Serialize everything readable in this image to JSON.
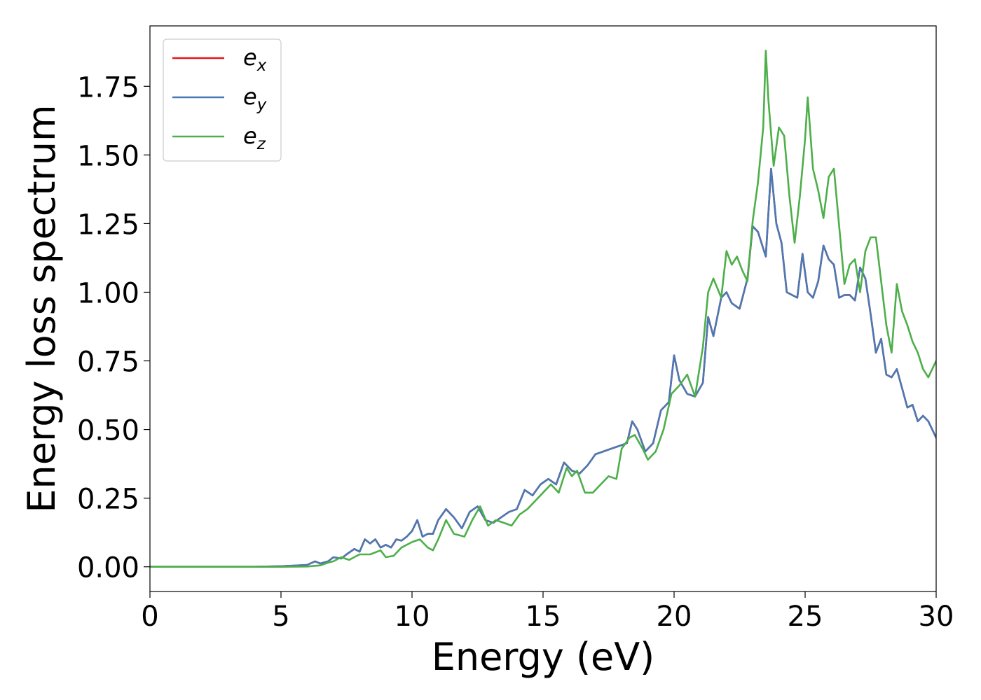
{
  "chart_data": {
    "type": "line",
    "xlabel": "Energy (eV)",
    "ylabel": "Energy loss spectrum",
    "xlim": [
      0,
      30
    ],
    "ylim": [
      -0.09,
      1.97
    ],
    "xticks": [
      0,
      5,
      10,
      15,
      20,
      25,
      30
    ],
    "xtick_labels": [
      "0",
      "5",
      "10",
      "15",
      "20",
      "25",
      "30"
    ],
    "yticks": [
      0.0,
      0.25,
      0.5,
      0.75,
      1.0,
      1.25,
      1.5,
      1.75
    ],
    "ytick_labels": [
      "0.00",
      "0.25",
      "0.50",
      "0.75",
      "1.00",
      "1.25",
      "1.50",
      "1.75"
    ],
    "grid": false,
    "legend_position": "top-left",
    "series": [
      {
        "name": "e_x",
        "legend_base": "e",
        "legend_sub": "x",
        "color": "#e41a1c",
        "x": [
          0,
          2,
          4,
          5,
          5.5,
          6,
          6.3,
          6.5,
          6.8,
          7,
          7.3,
          7.5,
          7.8,
          8,
          8.2,
          8.4,
          8.6,
          8.8,
          9,
          9.2,
          9.4,
          9.6,
          9.8,
          10,
          10.2,
          10.4,
          10.6,
          10.8,
          11,
          11.3,
          11.6,
          11.9,
          12.2,
          12.5,
          12.8,
          13.1,
          13.4,
          13.7,
          14,
          14.3,
          14.6,
          14.9,
          15.2,
          15.5,
          15.8,
          16.1,
          16.4,
          16.7,
          17,
          17.3,
          17.6,
          17.9,
          18.2,
          18.4,
          18.6,
          18.9,
          19.2,
          19.5,
          19.8,
          20,
          20.2,
          20.5,
          20.8,
          21.1,
          21.3,
          21.5,
          21.8,
          22,
          22.2,
          22.5,
          22.8,
          23,
          23.2,
          23.5,
          23.7,
          23.9,
          24.1,
          24.3,
          24.5,
          24.7,
          24.9,
          25.1,
          25.3,
          25.5,
          25.7,
          25.9,
          26.1,
          26.3,
          26.5,
          26.7,
          26.9,
          27.1,
          27.3,
          27.5,
          27.7,
          27.9,
          28.1,
          28.3,
          28.5,
          28.7,
          28.9,
          29.1,
          29.3,
          29.5,
          29.7,
          30
        ],
        "y": [
          0.0,
          0.0,
          0.0,
          0.002,
          0.004,
          0.007,
          0.02,
          0.012,
          0.02,
          0.035,
          0.03,
          0.045,
          0.065,
          0.055,
          0.1,
          0.085,
          0.1,
          0.07,
          0.08,
          0.07,
          0.1,
          0.095,
          0.11,
          0.13,
          0.17,
          0.11,
          0.12,
          0.12,
          0.17,
          0.21,
          0.18,
          0.14,
          0.2,
          0.22,
          0.17,
          0.16,
          0.18,
          0.2,
          0.21,
          0.28,
          0.26,
          0.3,
          0.32,
          0.3,
          0.38,
          0.35,
          0.34,
          0.37,
          0.41,
          0.42,
          0.43,
          0.44,
          0.45,
          0.53,
          0.5,
          0.42,
          0.45,
          0.57,
          0.6,
          0.77,
          0.68,
          0.63,
          0.62,
          0.67,
          0.91,
          0.84,
          0.98,
          1.0,
          0.96,
          0.94,
          1.05,
          1.24,
          1.22,
          1.13,
          1.45,
          1.25,
          1.18,
          1.0,
          0.99,
          0.98,
          1.14,
          1.0,
          0.98,
          1.04,
          1.17,
          1.12,
          1.1,
          0.98,
          0.99,
          0.99,
          0.97,
          1.09,
          1.05,
          0.92,
          0.78,
          0.83,
          0.7,
          0.69,
          0.72,
          0.65,
          0.58,
          0.59,
          0.53,
          0.55,
          0.53,
          0.47
        ]
      },
      {
        "name": "e_y",
        "legend_base": "e",
        "legend_sub": "y",
        "color": "#4a79b3",
        "x": [
          0,
          2,
          4,
          5,
          5.5,
          6,
          6.3,
          6.5,
          6.8,
          7,
          7.3,
          7.5,
          7.8,
          8,
          8.2,
          8.4,
          8.6,
          8.8,
          9,
          9.2,
          9.4,
          9.6,
          9.8,
          10,
          10.2,
          10.4,
          10.6,
          10.8,
          11,
          11.3,
          11.6,
          11.9,
          12.2,
          12.5,
          12.8,
          13.1,
          13.4,
          13.7,
          14,
          14.3,
          14.6,
          14.9,
          15.2,
          15.5,
          15.8,
          16.1,
          16.4,
          16.7,
          17,
          17.3,
          17.6,
          17.9,
          18.2,
          18.4,
          18.6,
          18.9,
          19.2,
          19.5,
          19.8,
          20,
          20.2,
          20.5,
          20.8,
          21.1,
          21.3,
          21.5,
          21.8,
          22,
          22.2,
          22.5,
          22.8,
          23,
          23.2,
          23.5,
          23.7,
          23.9,
          24.1,
          24.3,
          24.5,
          24.7,
          24.9,
          25.1,
          25.3,
          25.5,
          25.7,
          25.9,
          26.1,
          26.3,
          26.5,
          26.7,
          26.9,
          27.1,
          27.3,
          27.5,
          27.7,
          27.9,
          28.1,
          28.3,
          28.5,
          28.7,
          28.9,
          29.1,
          29.3,
          29.5,
          29.7,
          30
        ],
        "y": [
          0.0,
          0.0,
          0.0,
          0.002,
          0.004,
          0.007,
          0.02,
          0.012,
          0.02,
          0.035,
          0.03,
          0.045,
          0.065,
          0.055,
          0.1,
          0.085,
          0.1,
          0.07,
          0.08,
          0.07,
          0.1,
          0.095,
          0.11,
          0.13,
          0.17,
          0.11,
          0.12,
          0.12,
          0.17,
          0.21,
          0.18,
          0.14,
          0.2,
          0.22,
          0.17,
          0.16,
          0.18,
          0.2,
          0.21,
          0.28,
          0.26,
          0.3,
          0.32,
          0.3,
          0.38,
          0.35,
          0.34,
          0.37,
          0.41,
          0.42,
          0.43,
          0.44,
          0.45,
          0.53,
          0.5,
          0.42,
          0.45,
          0.57,
          0.6,
          0.77,
          0.68,
          0.63,
          0.62,
          0.67,
          0.91,
          0.84,
          0.98,
          1.0,
          0.96,
          0.94,
          1.05,
          1.24,
          1.22,
          1.13,
          1.45,
          1.25,
          1.18,
          1.0,
          0.99,
          0.98,
          1.14,
          1.0,
          0.98,
          1.04,
          1.17,
          1.12,
          1.1,
          0.98,
          0.99,
          0.99,
          0.97,
          1.09,
          1.05,
          0.92,
          0.78,
          0.83,
          0.7,
          0.69,
          0.72,
          0.65,
          0.58,
          0.59,
          0.53,
          0.55,
          0.53,
          0.47
        ]
      },
      {
        "name": "e_z",
        "legend_base": "e",
        "legend_sub": "z",
        "color": "#4daf4a",
        "x": [
          0,
          2,
          4,
          5,
          6,
          6.5,
          6.8,
          7,
          7.3,
          7.6,
          8,
          8.4,
          8.8,
          9,
          9.3,
          9.6,
          10,
          10.3,
          10.6,
          10.8,
          11,
          11.3,
          11.6,
          12,
          12.3,
          12.6,
          12.9,
          13.2,
          13.5,
          13.8,
          14.1,
          14.4,
          14.7,
          15,
          15.3,
          15.6,
          15.9,
          16.1,
          16.3,
          16.6,
          16.9,
          17.2,
          17.5,
          17.8,
          18,
          18.3,
          18.5,
          18.8,
          19,
          19.3,
          19.6,
          19.9,
          20.2,
          20.5,
          20.8,
          21.1,
          21.3,
          21.5,
          21.8,
          22,
          22.2,
          22.4,
          22.6,
          22.8,
          23,
          23.2,
          23.4,
          23.5,
          23.6,
          23.8,
          24,
          24.2,
          24.4,
          24.6,
          24.8,
          25,
          25.1,
          25.3,
          25.5,
          25.7,
          25.9,
          26.1,
          26.3,
          26.5,
          26.7,
          26.9,
          27.1,
          27.3,
          27.5,
          27.7,
          27.9,
          28.1,
          28.3,
          28.5,
          28.7,
          28.9,
          29.1,
          29.3,
          29.5,
          29.7,
          30
        ],
        "y": [
          0.0,
          0.0,
          0.0,
          0.0,
          0.001,
          0.005,
          0.015,
          0.02,
          0.035,
          0.025,
          0.045,
          0.045,
          0.06,
          0.035,
          0.04,
          0.07,
          0.09,
          0.1,
          0.07,
          0.06,
          0.1,
          0.17,
          0.12,
          0.11,
          0.17,
          0.22,
          0.15,
          0.17,
          0.16,
          0.15,
          0.19,
          0.21,
          0.24,
          0.27,
          0.3,
          0.27,
          0.36,
          0.33,
          0.35,
          0.27,
          0.27,
          0.3,
          0.33,
          0.32,
          0.43,
          0.47,
          0.48,
          0.43,
          0.39,
          0.42,
          0.5,
          0.63,
          0.66,
          0.7,
          0.62,
          0.8,
          1.0,
          1.05,
          0.98,
          1.15,
          1.1,
          1.13,
          1.08,
          1.04,
          1.26,
          1.4,
          1.6,
          1.88,
          1.7,
          1.46,
          1.6,
          1.57,
          1.35,
          1.18,
          1.35,
          1.56,
          1.71,
          1.45,
          1.37,
          1.27,
          1.42,
          1.45,
          1.24,
          1.03,
          1.1,
          1.12,
          1.0,
          1.15,
          1.2,
          1.2,
          1.04,
          0.88,
          0.78,
          1.03,
          0.93,
          0.88,
          0.82,
          0.78,
          0.72,
          0.69,
          0.75
        ]
      }
    ]
  }
}
